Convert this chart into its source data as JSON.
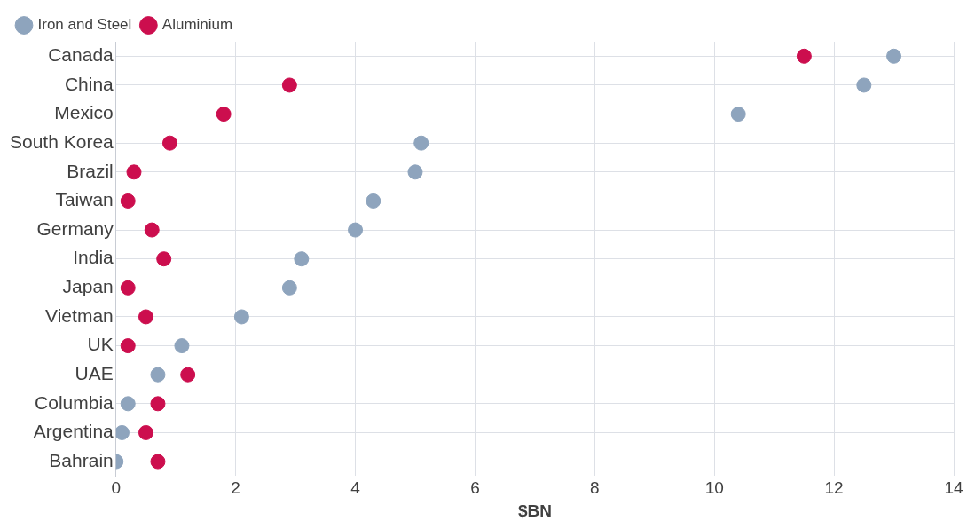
{
  "chart_data": {
    "type": "scatter",
    "orientation": "horizontal",
    "xlabel": "$BN",
    "categories": [
      "Canada",
      "China",
      "Mexico",
      "South Korea",
      "Brazil",
      "Taiwan",
      "Germany",
      "India",
      "Japan",
      "Vietman",
      "UK",
      "UAE",
      "Columbia",
      "Argentina",
      "Bahrain"
    ],
    "series": [
      {
        "name": "Iron and Steel",
        "color": "#8ea4bd",
        "values": [
          13.0,
          12.5,
          10.4,
          5.1,
          5.0,
          4.3,
          4.0,
          3.1,
          2.9,
          2.1,
          1.1,
          0.7,
          0.2,
          0.1,
          0.0
        ]
      },
      {
        "name": "Aluminium",
        "color": "#cc0e4e",
        "values": [
          11.5,
          2.9,
          1.8,
          0.9,
          0.3,
          0.2,
          0.6,
          0.8,
          0.2,
          0.5,
          0.2,
          1.2,
          0.7,
          0.5,
          0.7
        ]
      }
    ],
    "xlim": [
      0,
      14
    ],
    "xticks": [
      0,
      2,
      4,
      6,
      8,
      10,
      12,
      14
    ],
    "grid": true,
    "legend": "top left",
    "marker": "circle"
  }
}
